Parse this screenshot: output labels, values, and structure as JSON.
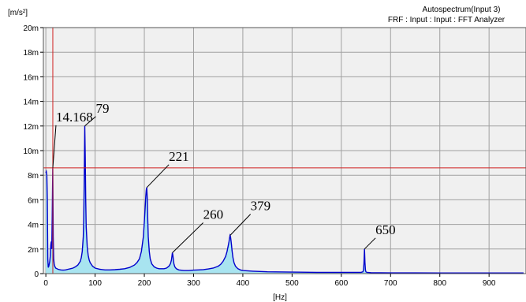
{
  "chart_data": {
    "type": "line",
    "title": "Autospectrum(Input 3)",
    "subtitle": "FRF : Input : Input : FFT Analyzer",
    "ylabel": "[m/s²]",
    "xlabel": "[Hz]",
    "xlim": [
      -5,
      975
    ],
    "ylim": [
      0,
      20
    ],
    "x_ticks": [
      0,
      100,
      200,
      300,
      400,
      500,
      600,
      700,
      800,
      900
    ],
    "y_ticks": [
      0,
      2,
      4,
      6,
      8,
      10,
      12,
      14,
      16,
      18,
      20
    ],
    "x_tick_labels": [
      "0",
      "100",
      "200",
      "300",
      "400",
      "500",
      "600",
      "700",
      "800",
      "900"
    ],
    "y_tick_labels": [
      "0",
      "2m",
      "4m",
      "6m",
      "8m",
      "10m",
      "12m",
      "14m",
      "16m",
      "18m",
      "20m"
    ],
    "grid": true,
    "cursor": {
      "x": 14.168,
      "y": 8.6
    },
    "peaks": [
      {
        "label": "14.168",
        "x": 14.168,
        "y": 8.6
      },
      {
        "label": "79",
        "x": 79,
        "y": 12.0
      },
      {
        "label": "221",
        "x": 205,
        "y": 7.0
      },
      {
        "label": "260",
        "x": 257,
        "y": 1.7
      },
      {
        "label": "379",
        "x": 374,
        "y": 3.1
      },
      {
        "label": "650",
        "x": 647,
        "y": 2.0
      }
    ],
    "series": [
      {
        "color": "#0000cc",
        "fill": "#a8e4f0",
        "x": [
          0,
          1,
          2,
          3,
          4,
          5,
          6,
          7,
          8,
          9,
          10,
          11,
          12,
          13,
          14,
          15,
          16,
          17,
          18,
          20,
          25,
          30,
          35,
          40,
          45,
          50,
          55,
          60,
          65,
          70,
          72,
          74,
          76,
          77,
          78,
          79,
          80,
          81,
          82,
          84,
          86,
          88,
          90,
          95,
          100,
          110,
          120,
          130,
          140,
          150,
          160,
          170,
          180,
          185,
          190,
          194,
          198,
          200,
          202,
          203,
          204,
          205,
          206,
          207,
          208,
          210,
          212,
          215,
          220,
          225,
          230,
          240,
          245,
          250,
          253,
          255,
          256,
          257,
          258,
          259,
          260,
          262,
          265,
          270,
          280,
          290,
          300,
          310,
          320,
          330,
          340,
          350,
          355,
          360,
          365,
          368,
          370,
          372,
          373,
          374,
          375,
          376,
          377,
          378,
          380,
          382,
          385,
          390,
          395,
          400,
          420,
          450,
          500,
          550,
          600,
          640,
          644,
          645,
          646,
          647,
          648,
          649,
          650,
          652,
          660,
          700,
          750,
          800,
          850,
          900,
          950,
          970
        ],
        "y": [
          8.2,
          8.3,
          8.0,
          6.0,
          1.2,
          0.5,
          0.6,
          0.8,
          1.0,
          1.4,
          2.3,
          2.6,
          2.0,
          4.5,
          8.6,
          3.0,
          1.2,
          0.8,
          0.6,
          0.45,
          0.35,
          0.3,
          0.28,
          0.3,
          0.35,
          0.4,
          0.45,
          0.55,
          0.7,
          1.0,
          1.3,
          1.8,
          3.0,
          4.5,
          7.5,
          12.0,
          9.5,
          6.0,
          3.8,
          2.2,
          1.5,
          1.1,
          0.9,
          0.6,
          0.45,
          0.35,
          0.3,
          0.3,
          0.32,
          0.35,
          0.4,
          0.5,
          0.7,
          0.9,
          1.2,
          1.8,
          3.0,
          4.2,
          5.6,
          6.3,
          6.8,
          7.0,
          6.0,
          4.3,
          3.0,
          1.8,
          1.2,
          0.8,
          0.55,
          0.45,
          0.4,
          0.4,
          0.45,
          0.6,
          0.8,
          1.1,
          1.4,
          1.7,
          1.5,
          1.1,
          0.8,
          0.55,
          0.4,
          0.3,
          0.25,
          0.25,
          0.28,
          0.3,
          0.33,
          0.38,
          0.45,
          0.6,
          0.75,
          1.0,
          1.4,
          1.8,
          2.2,
          2.6,
          2.9,
          3.1,
          3.0,
          2.7,
          2.3,
          1.9,
          1.3,
          0.9,
          0.6,
          0.4,
          0.3,
          0.25,
          0.2,
          0.15,
          0.12,
          0.1,
          0.1,
          0.1,
          0.15,
          0.3,
          0.8,
          2.0,
          0.9,
          0.3,
          0.15,
          0.1,
          0.08,
          0.06,
          0.06,
          0.05,
          0.05,
          0.05,
          0.05,
          0.05
        ]
      }
    ]
  }
}
